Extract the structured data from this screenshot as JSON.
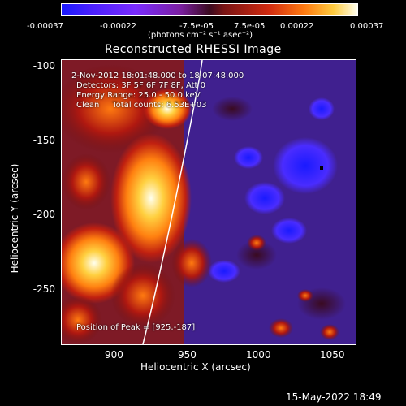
{
  "colorbar": {
    "ticks": [
      "-0.00037",
      "-0.00022",
      "-7.5e-05",
      "7.5e-05",
      "0.00022",
      "0.00037"
    ],
    "unit_label": "(photons cm⁻² s⁻¹ asec⁻²)",
    "colors": [
      "#1a1aff",
      "#7a2cff",
      "#3a0a20",
      "#d02a10",
      "#ff7a10",
      "#ffffee"
    ]
  },
  "title": "Reconstructed RHESSI Image",
  "annotations": {
    "line1": "2-Nov-2012 18:01:48.000 to 18:07:48.000",
    "line2": "Detectors: 3F 5F 6F 7F 8F, Att 0",
    "line3": "Energy Range: 25.0 - 50.0 keV",
    "line4": "Clean     Total counts: 6.53E+03",
    "peak": "Position of Peak = [925,-187]"
  },
  "axes": {
    "y_label": "Heliocentric Y (arcsec)",
    "x_label": "Heliocentric X (arcsec)",
    "y_ticks": [
      "-100",
      "-150",
      "-200",
      "-250"
    ],
    "x_ticks": [
      "900",
      "950",
      "1000",
      "1050"
    ]
  },
  "footer": {
    "timestamp": "15-May-2022 18:49"
  }
}
